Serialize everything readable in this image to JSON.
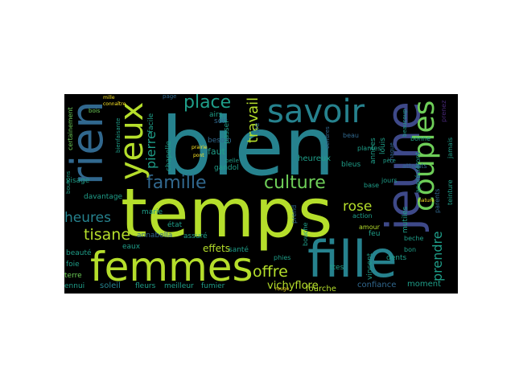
{
  "figure": {
    "background": "#ffffff",
    "panel_background": "#000000"
  },
  "palette": {
    "lime": "#b5de2b",
    "green": "#6ece58",
    "teal": "#1f9e89",
    "cyan": "#26828e",
    "blue": "#31688e",
    "indigo": "#3e4989",
    "purple": "#482878",
    "yellow": "#fde725"
  },
  "words": [
    {
      "text": "bien",
      "color": "cyan"
    },
    {
      "text": "temps",
      "color": "lime"
    },
    {
      "text": "jeune",
      "color": "indigo"
    },
    {
      "text": "fille",
      "color": "cyan"
    },
    {
      "text": "femmes",
      "color": "lime"
    },
    {
      "text": "rien",
      "color": "blue"
    },
    {
      "text": "savoir",
      "color": "cyan"
    },
    {
      "text": "couples",
      "color": "green"
    },
    {
      "text": "yeux",
      "color": "lime"
    },
    {
      "text": "famille",
      "color": "blue"
    },
    {
      "text": "culture",
      "color": "green"
    },
    {
      "text": "place",
      "color": "teal"
    },
    {
      "text": "travail",
      "color": "lime"
    },
    {
      "text": "pierre",
      "color": "teal"
    },
    {
      "text": "heures",
      "color": "cyan"
    },
    {
      "text": "tisane",
      "color": "lime"
    },
    {
      "text": "offre",
      "color": "lime"
    },
    {
      "text": "prendre",
      "color": "teal"
    },
    {
      "text": "rose",
      "color": "lime"
    },
    {
      "text": "vichyflore",
      "color": "lime"
    },
    {
      "text": "fourche",
      "color": "lime"
    },
    {
      "text": "confiance",
      "color": "blue"
    },
    {
      "text": "moment",
      "color": "teal"
    },
    {
      "text": "soleil",
      "color": "cyan"
    },
    {
      "text": "fleurs",
      "color": "teal"
    },
    {
      "text": "meilleur",
      "color": "teal"
    },
    {
      "text": "fumier",
      "color": "teal"
    },
    {
      "text": "ennui",
      "color": "teal"
    },
    {
      "text": "terre",
      "color": "green"
    },
    {
      "text": "foie",
      "color": "teal"
    },
    {
      "text": "beauté",
      "color": "teal"
    },
    {
      "text": "eaux",
      "color": "teal"
    },
    {
      "text": "effets",
      "color": "lime"
    },
    {
      "text": "santé",
      "color": "teal"
    },
    {
      "text": "assuré",
      "color": "teal"
    },
    {
      "text": "annabella",
      "color": "blue"
    },
    {
      "text": "état",
      "color": "teal"
    },
    {
      "text": "marie",
      "color": "teal"
    },
    {
      "text": "davantage",
      "color": "teal"
    },
    {
      "text": "visage",
      "color": "teal"
    },
    {
      "text": "certainement",
      "color": "green"
    },
    {
      "text": "boutons",
      "color": "teal"
    },
    {
      "text": "chapelle",
      "color": "teal"
    },
    {
      "text": "faut",
      "color": "teal"
    },
    {
      "text": "besoin",
      "color": "blue"
    },
    {
      "text": "airs",
      "color": "teal"
    },
    {
      "text": "gandol",
      "color": "teal"
    },
    {
      "text": "soir",
      "color": "blue"
    },
    {
      "text": "passer",
      "color": "teal"
    },
    {
      "text": "facile",
      "color": "teal"
    },
    {
      "text": "page",
      "color": "blue"
    },
    {
      "text": "bois",
      "color": "green"
    },
    {
      "text": "heureux",
      "color": "teal"
    },
    {
      "text": "bleus",
      "color": "teal"
    },
    {
      "text": "base",
      "color": "teal"
    },
    {
      "text": "action",
      "color": "teal"
    },
    {
      "text": "amour",
      "color": "lime"
    },
    {
      "text": "feu",
      "color": "teal"
    },
    {
      "text": "plantes",
      "color": "teal"
    },
    {
      "text": "mutilés",
      "color": "teal"
    },
    {
      "text": "dents",
      "color": "teal"
    },
    {
      "text": "vincent",
      "color": "teal"
    },
    {
      "text": "phies",
      "color": "teal"
    },
    {
      "text": "bouche",
      "color": "teal"
    },
    {
      "text": "beche",
      "color": "teal"
    },
    {
      "text": "bon",
      "color": "teal"
    },
    {
      "text": "années",
      "color": "teal"
    },
    {
      "text": "louis",
      "color": "teal"
    },
    {
      "text": "jours",
      "color": "teal"
    },
    {
      "text": "père",
      "color": "teal"
    },
    {
      "text": "bonne",
      "color": "teal"
    },
    {
      "text": "atteints",
      "color": "blue"
    },
    {
      "text": "appréciéront",
      "color": "teal"
    },
    {
      "text": "teinture",
      "color": "teal"
    },
    {
      "text": "jamais",
      "color": "teal"
    },
    {
      "text": "parents",
      "color": "blue"
    },
    {
      "text": "cendres",
      "color": "blue"
    },
    {
      "text": "prenez",
      "color": "purple"
    },
    {
      "text": "beaucoup",
      "color": "teal"
    },
    {
      "text": "beau",
      "color": "blue"
    },
    {
      "text": "vie",
      "color": "blue"
    },
    {
      "text": "chaque",
      "color": "blue"
    },
    {
      "text": "prend",
      "color": "blue"
    },
    {
      "text": "belle",
      "color": "teal"
    },
    {
      "text": "ttes",
      "color": "teal"
    },
    {
      "text": "bienfaisante",
      "color": "teal"
    },
    {
      "text": "mille",
      "color": "yellow"
    },
    {
      "text": "connaître",
      "color": "yellow"
    },
    {
      "text": "prairie",
      "color": "yellow"
    },
    {
      "text": "pont",
      "color": "yellow"
    },
    {
      "text": "rouge",
      "color": "yellow"
    },
    {
      "text": "nature",
      "color": "yellow"
    }
  ]
}
